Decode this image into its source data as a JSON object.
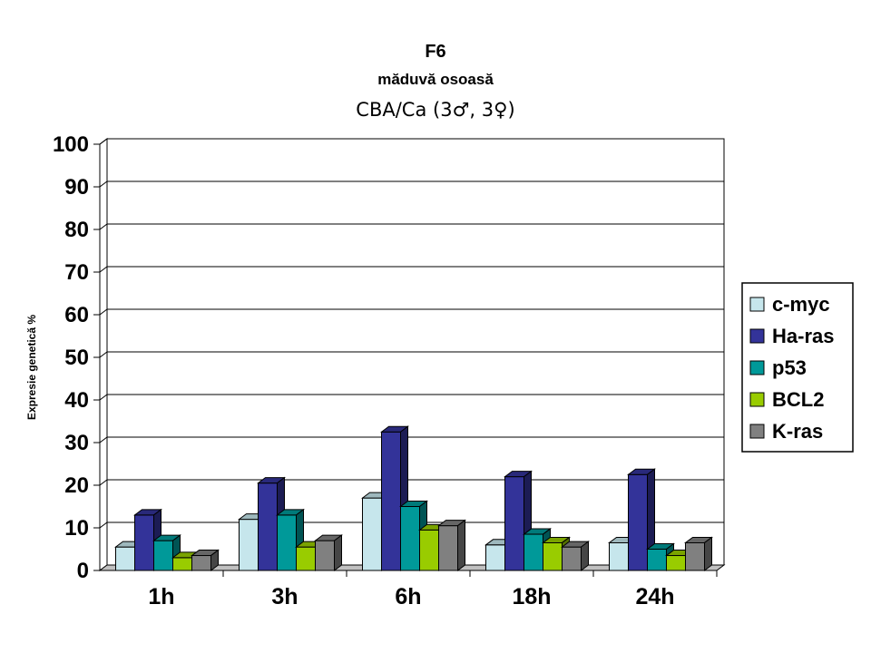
{
  "chart_data": {
    "type": "bar",
    "title": "F6",
    "subtitle": "măduvă osoasă",
    "subtitle2": "CBA/Ca (3♂, 3♀)",
    "xlabel": "",
    "ylabel": "Expresie genetică %",
    "ylim": [
      0,
      100
    ],
    "yticks": [
      "0",
      "10",
      "20",
      "30",
      "40",
      "50",
      "60",
      "70",
      "80",
      "90",
      "100"
    ],
    "grid": true,
    "legend_position": "right",
    "categories": [
      "1h",
      "3h",
      "6h",
      "18h",
      "24h"
    ],
    "series": [
      {
        "name": "c-myc",
        "color": "#c6e6ec",
        "values": [
          5.5,
          12,
          17,
          6,
          6.5
        ]
      },
      {
        "name": "Ha-ras",
        "color": "#333399",
        "values": [
          13,
          20.5,
          32.5,
          22,
          22.5
        ]
      },
      {
        "name": "p53",
        "color": "#009999",
        "values": [
          7,
          13,
          15,
          8.5,
          5
        ]
      },
      {
        "name": "BCL2",
        "color": "#99cc00",
        "values": [
          3,
          5.5,
          9.5,
          6.5,
          3.5
        ]
      },
      {
        "name": "K-ras",
        "color": "#808080",
        "values": [
          3.5,
          7,
          10.5,
          5.5,
          6.5
        ]
      }
    ]
  }
}
